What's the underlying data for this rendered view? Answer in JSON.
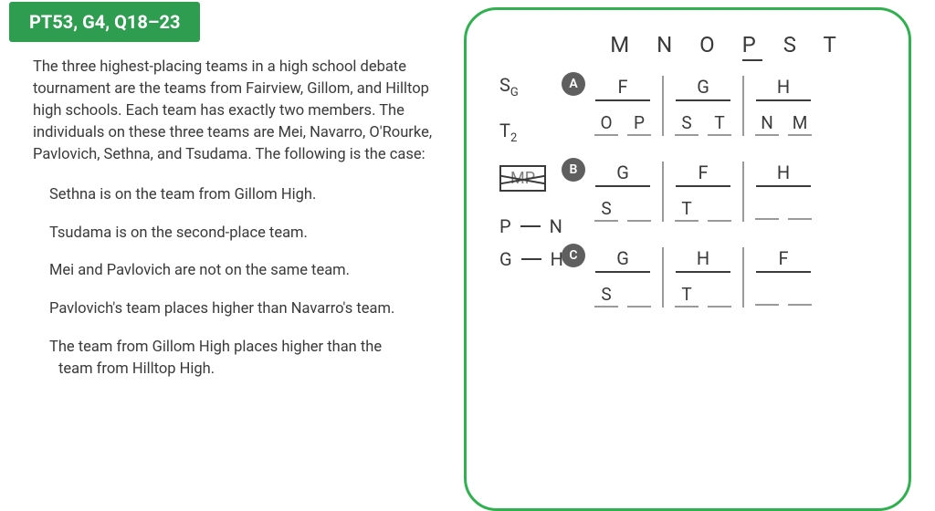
{
  "header": {
    "tag": "PT53, G4, Q18–23"
  },
  "intro": "The three highest-placing teams in a high school debate tournament are the teams from Fairview, Gillom, and Hilltop high schools. Each team has exactly two members. The individuals on these three teams are Mei, Navarro, O'Rourke, Pavlovich, Sethna, and Tsudama. The following is the case:",
  "rules": [
    "Sethna is on the team from Gillom High.",
    "Tsudama is on the second-place team.",
    "Mei and Pavlovich are not on the same team.",
    "Pavlovich's team places higher than Navarro's team.",
    "The team from Gillom High places higher than the"
  ],
  "rule5_cont": "team from Hilltop High.",
  "panel": {
    "roster": "M N O P S T",
    "notes": {
      "sg_main": "S",
      "sg_sub": "G",
      "t2_main": "T",
      "t2_sub": "2",
      "mp": "MP",
      "pn_a": "P",
      "pn_b": "N",
      "gh_a": "G",
      "gh_b": "H"
    },
    "scenarios": [
      {
        "label": "A",
        "groups": [
          {
            "head": "F",
            "slots": [
              "O",
              "P"
            ]
          },
          {
            "head": "G",
            "slots": [
              "S",
              "T"
            ]
          },
          {
            "head": "H",
            "slots": [
              "N",
              "M"
            ]
          }
        ]
      },
      {
        "label": "B",
        "groups": [
          {
            "head": "G",
            "slots": [
              "S",
              ""
            ]
          },
          {
            "head": "F",
            "slots": [
              "T",
              ""
            ]
          },
          {
            "head": "H",
            "slots": [
              "",
              ""
            ]
          }
        ]
      },
      {
        "label": "C",
        "groups": [
          {
            "head": "G",
            "slots": [
              "S",
              ""
            ]
          },
          {
            "head": "H",
            "slots": [
              "T",
              ""
            ]
          },
          {
            "head": "F",
            "slots": [
              "",
              ""
            ]
          }
        ]
      }
    ]
  },
  "colors": {
    "brand_green": "#2e9d4f",
    "panel_border": "#30b14f",
    "text": "#3a3a3a",
    "badge_bg": "#5f5f5f",
    "slot_underline": "#9a9a9a"
  }
}
